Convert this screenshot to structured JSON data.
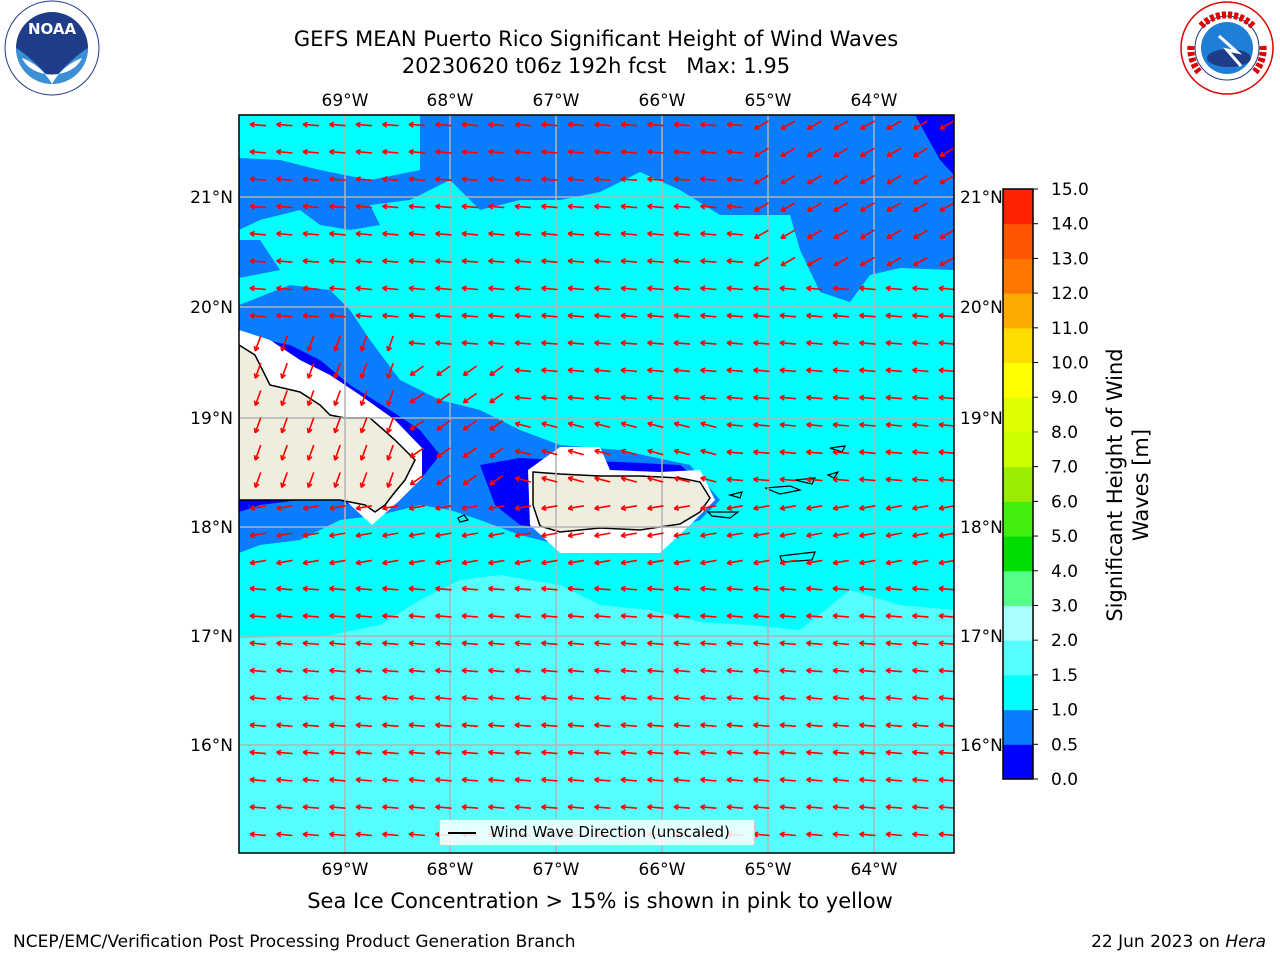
{
  "header": {
    "title_line1": "GEFS MEAN Puerto Rico Significant Height of Wind Waves",
    "title_line2": "20230620 t06z 192h fcst   Max: 1.95"
  },
  "logos": {
    "left": {
      "name": "noaa-logo",
      "text": "NOAA",
      "ring_text": "NATIONAL OCEANIC AND ATMOSPHERIC ADMINISTRATION · U.S. DEPARTMENT OF COMMERCE"
    },
    "right": {
      "name": "nws-logo",
      "ring_text": "NATIONAL WEATHER SERVICE"
    }
  },
  "map": {
    "lon_labels": [
      "69°W",
      "68°W",
      "67°W",
      "66°W",
      "65°W",
      "64°W"
    ],
    "lat_labels": [
      "21°N",
      "20°N",
      "19°N",
      "18°N",
      "17°N",
      "16°N"
    ],
    "legend": "Wind Wave Direction (unscaled)",
    "arrow_color": "#ff0000",
    "land_color": "#efedde",
    "colors": {
      "band_0_0_5": "#0000ff",
      "band_0_5_1_0": "#0a7dff",
      "band_1_0_1_5": "#00ffff",
      "band_1_5_2_0": "#55ffff",
      "mask": "#ffffff"
    }
  },
  "colorbar": {
    "label": "Significant Height of Wind Waves [m]",
    "ticks": [
      "0.0",
      "0.5",
      "1.0",
      "1.5",
      "2.0",
      "3.0",
      "4.0",
      "5.0",
      "6.0",
      "7.0",
      "8.0",
      "9.0",
      "10.0",
      "11.0",
      "12.0",
      "13.0",
      "14.0",
      "15.0"
    ],
    "colors": [
      "#0000ff",
      "#0a7dff",
      "#00ffff",
      "#55ffff",
      "#aaffff",
      "#55ff88",
      "#00dd00",
      "#44ee11",
      "#99ee00",
      "#ccff00",
      "#ddff00",
      "#ffff00",
      "#ffdd00",
      "#ffaa00",
      "#ff7700",
      "#ff5500",
      "#ff2200"
    ]
  },
  "notes": {
    "ice": "Sea Ice Concentration > 15% is shown in pink to yellow"
  },
  "footer": {
    "left": "NCEP/EMC/Verification Post Processing Product Generation Branch",
    "right_date": "22 Jun 2023 on",
    "right_host": "Hera"
  }
}
